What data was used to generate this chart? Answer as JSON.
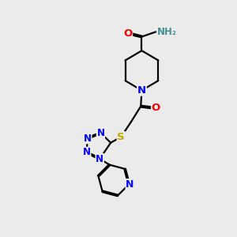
{
  "bg_color": "#ebebeb",
  "atom_colors": {
    "C": "#000000",
    "N": "#0000ee",
    "O": "#ee0000",
    "S": "#bbaa00",
    "H": "#4a9090"
  },
  "bond_color": "#000000",
  "bond_width": 1.6,
  "fig_width": 3.0,
  "fig_height": 3.0,
  "dpi": 100
}
